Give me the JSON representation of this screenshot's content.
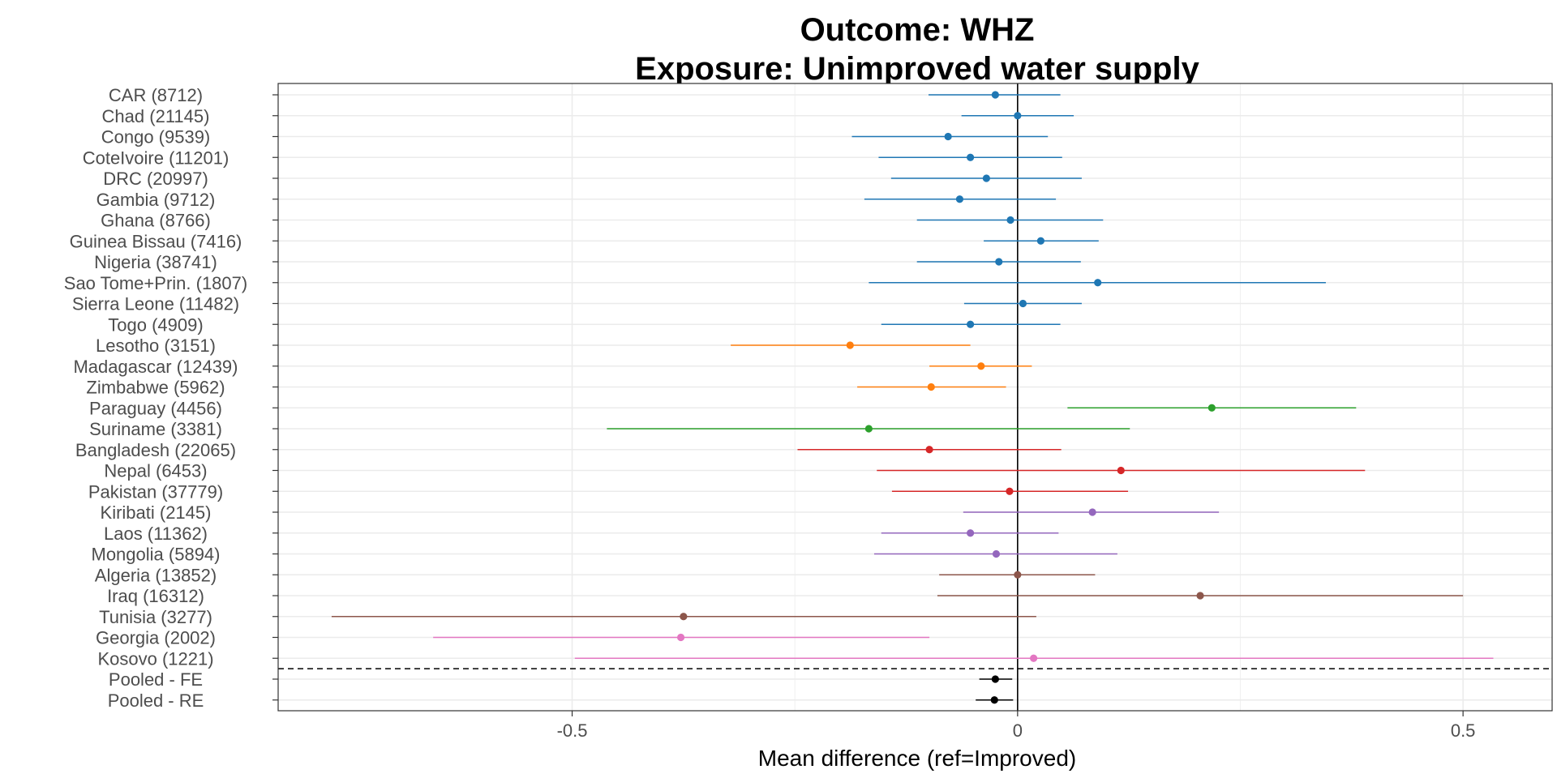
{
  "chart_data": {
    "type": "forest",
    "title": "Outcome: WHZ",
    "subtitle": "Exposure: Unimproved water supply",
    "xlabel": "Mean difference (ref=Improved)",
    "ylabel": "",
    "xlim": [
      -0.83,
      0.6
    ],
    "x_ticks": [
      -0.5,
      0,
      0.5
    ],
    "x_tick_labels": [
      "-0.5",
      "0",
      "0.5"
    ],
    "grid": true,
    "reference_line": 0,
    "separator_after_row": "Kosovo (1221)",
    "rows": [
      {
        "label": "CAR (8712)",
        "est": -0.025,
        "lo": -0.1,
        "hi": 0.048,
        "color": "#1f77b4"
      },
      {
        "label": "Chad (21145)",
        "est": 0.0,
        "lo": -0.063,
        "hi": 0.063,
        "color": "#1f77b4"
      },
      {
        "label": "Congo (9539)",
        "est": -0.078,
        "lo": -0.186,
        "hi": 0.034,
        "color": "#1f77b4"
      },
      {
        "label": "CoteIvoire (11201)",
        "est": -0.053,
        "lo": -0.156,
        "hi": 0.05,
        "color": "#1f77b4"
      },
      {
        "label": "DRC (20997)",
        "est": -0.035,
        "lo": -0.142,
        "hi": 0.072,
        "color": "#1f77b4"
      },
      {
        "label": "Gambia (9712)",
        "est": -0.065,
        "lo": -0.172,
        "hi": 0.043,
        "color": "#1f77b4"
      },
      {
        "label": "Ghana (8766)",
        "est": -0.008,
        "lo": -0.113,
        "hi": 0.096,
        "color": "#1f77b4"
      },
      {
        "label": "Guinea Bissau (7416)",
        "est": 0.026,
        "lo": -0.038,
        "hi": 0.091,
        "color": "#1f77b4"
      },
      {
        "label": "Nigeria (38741)",
        "est": -0.021,
        "lo": -0.113,
        "hi": 0.071,
        "color": "#1f77b4"
      },
      {
        "label": "Sao Tome+Prin. (1807)",
        "est": 0.09,
        "lo": -0.167,
        "hi": 0.346,
        "color": "#1f77b4"
      },
      {
        "label": "Sierra Leone (11482)",
        "est": 0.006,
        "lo": -0.06,
        "hi": 0.072,
        "color": "#1f77b4"
      },
      {
        "label": "Togo (4909)",
        "est": -0.053,
        "lo": -0.153,
        "hi": 0.048,
        "color": "#1f77b4"
      },
      {
        "label": "Lesotho (3151)",
        "est": -0.188,
        "lo": -0.322,
        "hi": -0.053,
        "color": "#ff7f0e"
      },
      {
        "label": "Madagascar (12439)",
        "est": -0.041,
        "lo": -0.099,
        "hi": 0.016,
        "color": "#ff7f0e"
      },
      {
        "label": "Zimbabwe (5962)",
        "est": -0.097,
        "lo": -0.18,
        "hi": -0.013,
        "color": "#ff7f0e"
      },
      {
        "label": "Paraguay (4456)",
        "est": 0.218,
        "lo": 0.056,
        "hi": 0.38,
        "color": "#2ca02c"
      },
      {
        "label": "Suriname (3381)",
        "est": -0.167,
        "lo": -0.461,
        "hi": 0.126,
        "color": "#2ca02c"
      },
      {
        "label": "Bangladesh (22065)",
        "est": -0.099,
        "lo": -0.247,
        "hi": 0.049,
        "color": "#d62728"
      },
      {
        "label": "Nepal (6453)",
        "est": 0.116,
        "lo": -0.158,
        "hi": 0.39,
        "color": "#d62728"
      },
      {
        "label": "Pakistan (37779)",
        "est": -0.009,
        "lo": -0.141,
        "hi": 0.124,
        "color": "#d62728"
      },
      {
        "label": "Kiribati (2145)",
        "est": 0.084,
        "lo": -0.061,
        "hi": 0.226,
        "color": "#9467bd"
      },
      {
        "label": "Laos (11362)",
        "est": -0.053,
        "lo": -0.153,
        "hi": 0.046,
        "color": "#9467bd"
      },
      {
        "label": "Mongolia (5894)",
        "est": -0.024,
        "lo": -0.161,
        "hi": 0.112,
        "color": "#9467bd"
      },
      {
        "label": "Algeria (13852)",
        "est": 0.0,
        "lo": -0.088,
        "hi": 0.087,
        "color": "#8c564b"
      },
      {
        "label": "Iraq (16312)",
        "est": 0.205,
        "lo": -0.09,
        "hi": 0.5,
        "color": "#8c564b"
      },
      {
        "label": "Tunisia (3277)",
        "est": -0.375,
        "lo": -0.77,
        "hi": 0.021,
        "color": "#8c564b"
      },
      {
        "label": "Georgia (2002)",
        "est": -0.378,
        "lo": -0.656,
        "hi": -0.099,
        "color": "#e377c2"
      },
      {
        "label": "Kosovo (1221)",
        "est": 0.018,
        "lo": -0.497,
        "hi": 0.534,
        "color": "#e377c2"
      },
      {
        "label": "Pooled - FE",
        "est": -0.025,
        "lo": -0.043,
        "hi": -0.006,
        "color": "#000000"
      },
      {
        "label": "Pooled - RE",
        "est": -0.026,
        "lo": -0.047,
        "hi": -0.005,
        "color": "#000000"
      }
    ]
  }
}
